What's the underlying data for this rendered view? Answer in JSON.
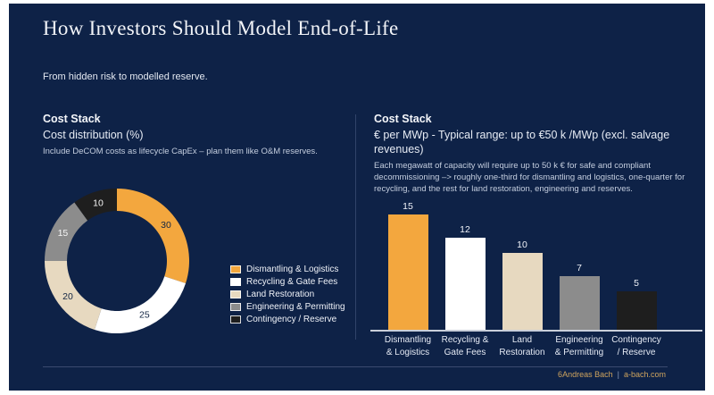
{
  "slide": {
    "title": "How Investors Should Model End-of-Life",
    "subtitle": "From hidden risk to modelled reserve.",
    "footer": {
      "page_number": "6",
      "author": "Andreas Bach",
      "separator": "|",
      "website": "a-bach.com"
    }
  },
  "left_panel": {
    "heading": "Cost Stack",
    "subheading": "Cost distribution (%)",
    "caption": "Include DeCOM costs as lifecycle CapEx – plan them like O&M reserves."
  },
  "right_panel": {
    "heading": "Cost Stack",
    "subheading": "€ per MWp - Typical range: up to €50 k /MWp (excl. salvage revenues)",
    "caption": "Each megawatt of capacity will require up to 50 k € for safe and compliant decommissioning –> roughly one-third for dismantling and logistics, one-quarter for recycling, and the rest for land restoration, engineering and reserves."
  },
  "colors": {
    "slide_background": "#0E2247",
    "accent_gold": "#CFA45E",
    "divider": "#31436A",
    "axis_baseline": "#C9CFDA",
    "text_primary": "#F2F4F8"
  },
  "chart_data": [
    {
      "type": "pie",
      "subtype": "donut",
      "title": "Cost distribution (%)",
      "categories": [
        "Dismantling & Logistics",
        "Recycling & Gate Fees",
        "Land Restoration",
        "Engineering & Permitting",
        "Contingency / Reserve"
      ],
      "values": [
        30,
        25,
        20,
        15,
        10
      ],
      "unit": "%",
      "colors": [
        "#F3A73E",
        "#FFFFFF",
        "#E7D9C0",
        "#8C8C8C",
        "#1E1E1E"
      ],
      "label_colors": [
        "#122543",
        "#122543",
        "#122543",
        "#F5F5F5",
        "#F5F5F5"
      ],
      "start_angle_deg": 0,
      "direction": "clockwise",
      "legend_position": "right"
    },
    {
      "type": "bar",
      "title": "€ per MWp - Typical range: up to €50 k /MWp (excl. salvage revenues)",
      "categories": [
        "Dismantling & Logistics",
        "Recycling & Gate Fees",
        "Land Restoration",
        "Engineering & Permitting",
        "Contingency / Reserve"
      ],
      "label_lines": [
        [
          "Dismantling",
          "& Logistics"
        ],
        [
          "Recycling &",
          "Gate Fees"
        ],
        [
          "Land",
          "Restoration"
        ],
        [
          "Engineering",
          "& Permitting"
        ],
        [
          "Contingency",
          "/ Reserve"
        ]
      ],
      "values": [
        15,
        12,
        10,
        7,
        5
      ],
      "colors": [
        "#F3A73E",
        "#FFFFFF",
        "#E7D9C0",
        "#8C8C8C",
        "#1E1E1E"
      ],
      "ylim": [
        0,
        16
      ],
      "grid": false,
      "value_labels": "above"
    }
  ]
}
